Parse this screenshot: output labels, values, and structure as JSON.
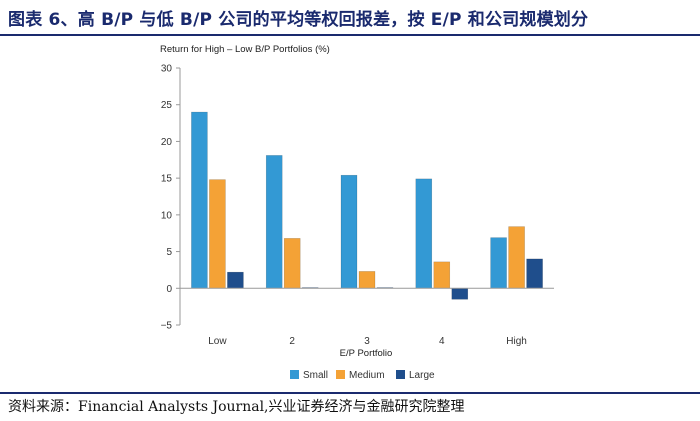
{
  "header": {
    "title": "图表 6、高 B/P 与低 B/P 公司的平均等权回报差，按 E/P 和公司规模划分"
  },
  "chart_data": {
    "type": "bar",
    "title": "Return for High – Low B/P Portfolios (%)",
    "xlabel": "E/P Portfolio",
    "ylabel": "",
    "categories": [
      "Low",
      "2",
      "3",
      "4",
      "High"
    ],
    "series": [
      {
        "name": "Small",
        "color": "#3399d4",
        "values": [
          24.0,
          18.1,
          15.4,
          14.9,
          6.9
        ]
      },
      {
        "name": "Medium",
        "color": "#f4a236",
        "values": [
          14.8,
          6.8,
          2.3,
          3.6,
          8.4
        ]
      },
      {
        "name": "Large",
        "color": "#1f4e8c",
        "values": [
          2.2,
          0.1,
          0.1,
          -1.5,
          4.0
        ]
      }
    ],
    "ylim": [
      -5,
      30
    ],
    "yticks": [
      -5,
      0,
      5,
      10,
      15,
      20,
      25,
      30
    ],
    "legend_position": "bottom-center",
    "grid": false
  },
  "footer": {
    "source": "资料来源：Financial Analysts Journal,兴业证券经济与金融研究院整理"
  }
}
